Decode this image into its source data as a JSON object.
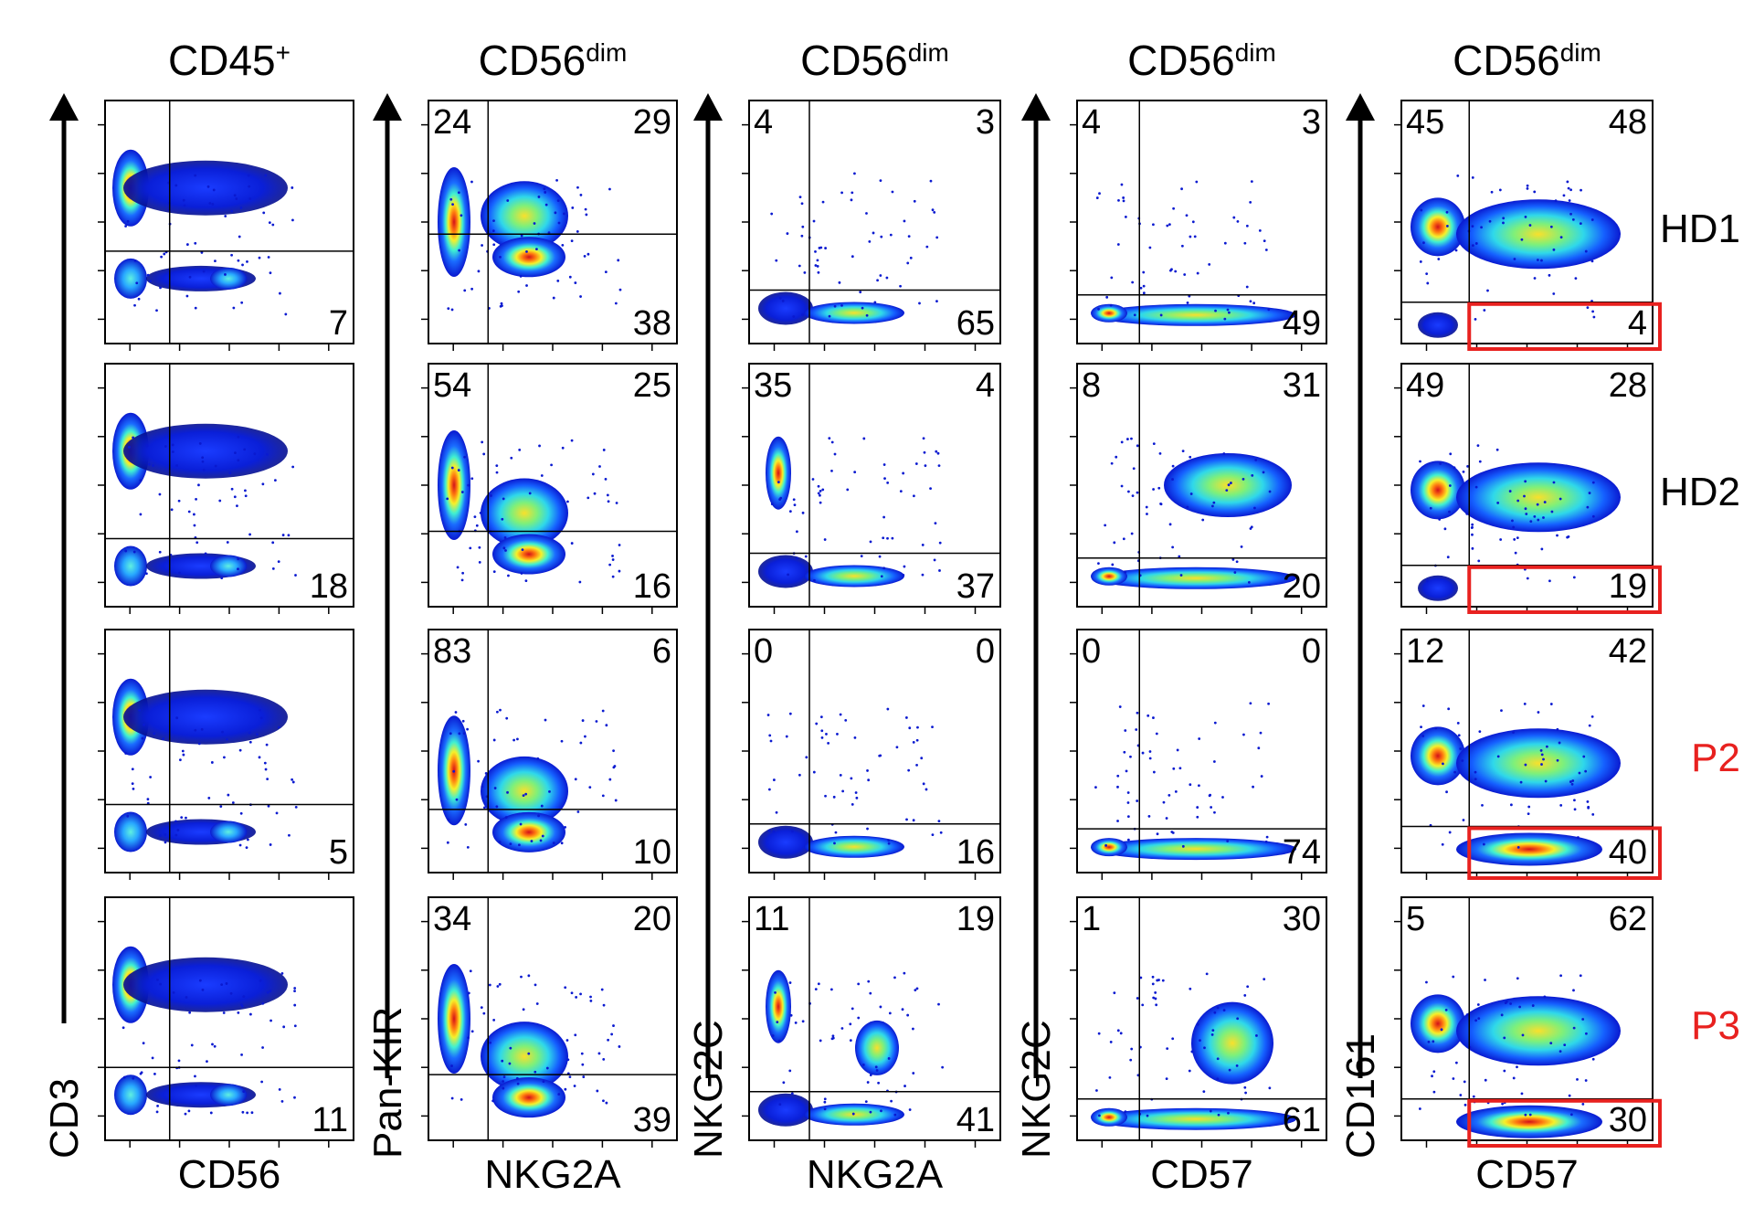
{
  "figure": {
    "columns": [
      {
        "title_main": "CD45",
        "title_sup": "+",
        "y_label": "CD3",
        "x_label": "CD56",
        "quadrant_type": "4q"
      },
      {
        "title_main": "CD56",
        "title_sup": "dim",
        "y_label": "Pan-KIR",
        "x_label": "NKG2A",
        "quadrant_type": "4q"
      },
      {
        "title_main": "CD56",
        "title_sup": "dim",
        "y_label": "NKG2C",
        "x_label": "NKG2A",
        "quadrant_type": "4q"
      },
      {
        "title_main": "CD56",
        "title_sup": "dim",
        "y_label": "NKG2C",
        "x_label": "CD57",
        "quadrant_type": "4q"
      },
      {
        "title_main": "CD56",
        "title_sup": "dim",
        "y_label": "CD161",
        "x_label": "CD57",
        "quadrant_type": "4q"
      }
    ],
    "rows": [
      {
        "label": "HD1",
        "color": "#000000"
      },
      {
        "label": "HD2",
        "color": "#000000"
      },
      {
        "label": "P2",
        "color": "#e8211f"
      },
      {
        "label": "P3",
        "color": "#e8211f"
      }
    ],
    "highlight_color": "#e8211f",
    "panels": [
      [
        {
          "ul": "",
          "ur": "",
          "lr": "7"
        },
        {
          "ul": "24",
          "ur": "29",
          "lr": "38"
        },
        {
          "ul": "4",
          "ur": "3",
          "lr": "65"
        },
        {
          "ul": "4",
          "ur": "3",
          "lr": "49"
        },
        {
          "ul": "45",
          "ur": "48",
          "lr": "4"
        }
      ],
      [
        {
          "ul": "",
          "ur": "",
          "lr": "18"
        },
        {
          "ul": "54",
          "ur": "25",
          "lr": "16"
        },
        {
          "ul": "35",
          "ur": "4",
          "lr": "37"
        },
        {
          "ul": "8",
          "ur": "31",
          "lr": "20"
        },
        {
          "ul": "49",
          "ur": "28",
          "lr": "19"
        }
      ],
      [
        {
          "ul": "",
          "ur": "",
          "lr": "5"
        },
        {
          "ul": "83",
          "ur": "6",
          "lr": "10"
        },
        {
          "ul": "0",
          "ur": "0",
          "lr": "16"
        },
        {
          "ul": "0",
          "ur": "0",
          "lr": "74"
        },
        {
          "ul": "12",
          "ur": "42",
          "lr": "40"
        }
      ],
      [
        {
          "ul": "",
          "ur": "",
          "lr": "11"
        },
        {
          "ul": "34",
          "ur": "20",
          "lr": "39"
        },
        {
          "ul": "11",
          "ur": "19",
          "lr": "41"
        },
        {
          "ul": "1",
          "ur": "30",
          "lr": "61"
        },
        {
          "ul": "5",
          "ur": "62",
          "lr": "30"
        }
      ]
    ]
  }
}
